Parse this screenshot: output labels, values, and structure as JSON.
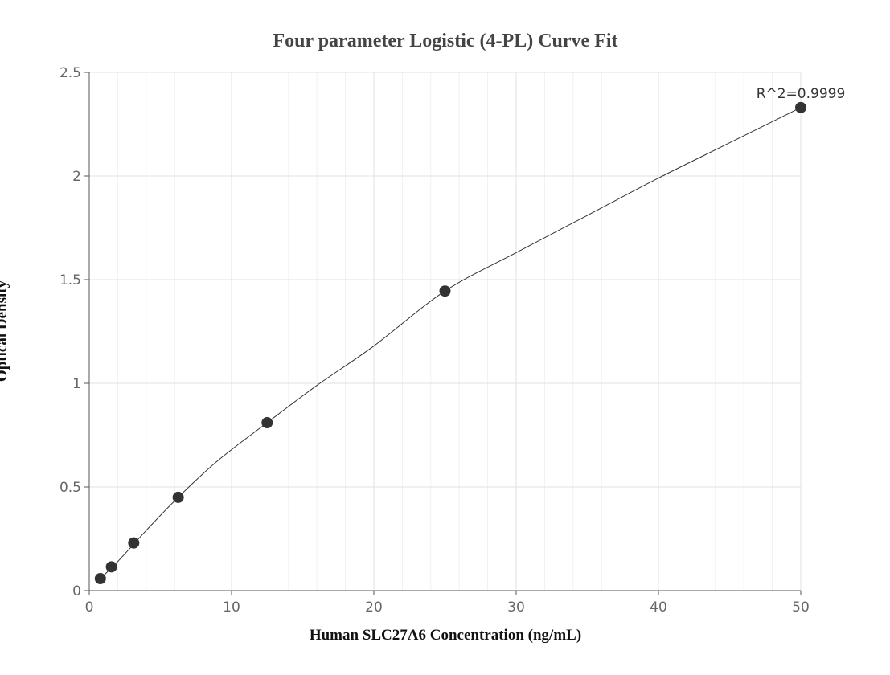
{
  "chart_data": {
    "type": "scatter",
    "title": "Four parameter Logistic (4-PL) Curve Fit",
    "xlabel": "Human SLC27A6 Concentration (ng/mL)",
    "ylabel": "Optical Density",
    "xlim": [
      0,
      50
    ],
    "ylim": [
      0,
      2.5
    ],
    "xticks": [
      "0",
      "10",
      "20",
      "30",
      "40",
      "50"
    ],
    "yticks": [
      "0",
      "0.5",
      "1",
      "1.5",
      "2",
      "2.5"
    ],
    "grid": true,
    "points": [
      {
        "x": 0.78,
        "y": 0.058
      },
      {
        "x": 1.56,
        "y": 0.115
      },
      {
        "x": 3.125,
        "y": 0.23
      },
      {
        "x": 6.25,
        "y": 0.45
      },
      {
        "x": 12.5,
        "y": 0.81
      },
      {
        "x": 25,
        "y": 1.445
      },
      {
        "x": 50,
        "y": 2.33
      }
    ],
    "fit_curve": [
      {
        "x": 0.78,
        "y": 0.058
      },
      {
        "x": 2,
        "y": 0.14
      },
      {
        "x": 4,
        "y": 0.29
      },
      {
        "x": 6.25,
        "y": 0.45
      },
      {
        "x": 9,
        "y": 0.625
      },
      {
        "x": 12.5,
        "y": 0.81
      },
      {
        "x": 16,
        "y": 0.99
      },
      {
        "x": 20,
        "y": 1.18
      },
      {
        "x": 25,
        "y": 1.445
      },
      {
        "x": 30,
        "y": 1.63
      },
      {
        "x": 35,
        "y": 1.81
      },
      {
        "x": 40,
        "y": 1.99
      },
      {
        "x": 45,
        "y": 2.16
      },
      {
        "x": 50,
        "y": 2.33
      }
    ],
    "annotation": "R^2=0.9999",
    "colors": {
      "point": "#333333",
      "curve": "#333333",
      "grid_major": "#e0e0e8",
      "grid_minor": "#f1f1f5",
      "axis": "#555555"
    }
  }
}
